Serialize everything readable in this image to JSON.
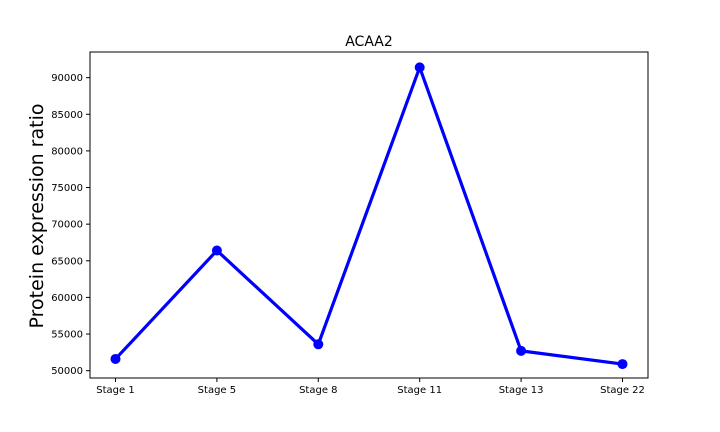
{
  "chart_data": {
    "type": "line",
    "title": "ACAA2",
    "xlabel": "",
    "ylabel": "Protein expression ratio",
    "categories": [
      "Stage 1",
      "Stage 5",
      "Stage 8",
      "Stage 11",
      "Stage 13",
      "Stage 22"
    ],
    "series": [
      {
        "values": [
          51600,
          66400,
          53600,
          91400,
          52700,
          50900
        ]
      }
    ],
    "ylim": [
      49000,
      93500
    ],
    "yticks": [
      50000,
      55000,
      60000,
      65000,
      70000,
      75000,
      80000,
      85000,
      90000
    ],
    "ytick_labels": [
      "50000",
      "55000",
      "60000",
      "65000",
      "70000",
      "75000",
      "80000",
      "85000",
      "90000"
    ],
    "grid": false,
    "legend": "none",
    "colors": {
      "line": "#0000ff",
      "marker": "#0000ff",
      "axes": "#000000"
    }
  }
}
